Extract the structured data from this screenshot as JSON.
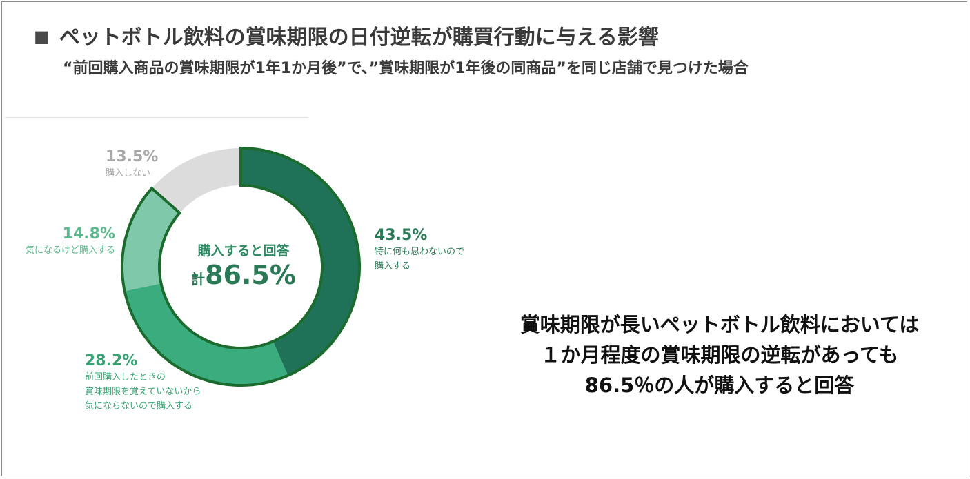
{
  "header": {
    "title": "ペットボトル飲料の賞味期限の日付逆転が購買行動に与える影響",
    "subtitle": "“前回購入商品の賞味期限が1年1か月後”で、”賞味期限が1年後の同商品”を同じ店舗で見つけた場合"
  },
  "chart_data": {
    "type": "pie",
    "variant": "donut",
    "title": "",
    "slices": [
      {
        "label": "特に何も思わないので購入する",
        "value": 43.5,
        "display": "43.5%",
        "color": "#1f7258",
        "emphasized": true
      },
      {
        "label": "前回購入したときの賞味期限を覚えていないから気にならないので購入する",
        "value": 28.2,
        "display": "28.2%",
        "color": "#3aac7e",
        "emphasized": true
      },
      {
        "label": "気になるけど購入する",
        "value": 14.8,
        "display": "14.8%",
        "color": "#7fc8a9",
        "emphasized": true
      },
      {
        "label": "購入しない",
        "value": 13.5,
        "display": "13.5%",
        "color": "#dcdcdc",
        "emphasized": false
      }
    ],
    "outline_color": "#1b6b2e",
    "center": {
      "heading": "購入すると回答",
      "total_prefix": "計",
      "total_value": "86.5%"
    }
  },
  "labels": {
    "s1": {
      "pct": "43.5%",
      "lines": [
        "特に何も思わないので",
        "購入する"
      ],
      "color": "#2b7a57"
    },
    "s2": {
      "pct": "28.2%",
      "lines": [
        "前回購入したときの",
        "賞味期限を覚えていないから",
        "気にならないので購入する"
      ],
      "color": "#3aa374"
    },
    "s3": {
      "pct": "14.8%",
      "lines": [
        "気になるけど購入する"
      ],
      "color": "#5fb98f"
    },
    "s4": {
      "pct": "13.5%",
      "lines": [
        "購入しない"
      ],
      "color": "#a8a8a8"
    }
  },
  "callout": {
    "lines": [
      "賞味期限が長いペットボトル飲料においては",
      "１か月程度の賞味期限の逆転があっても",
      "86.5％の人が購入すると回答"
    ]
  }
}
